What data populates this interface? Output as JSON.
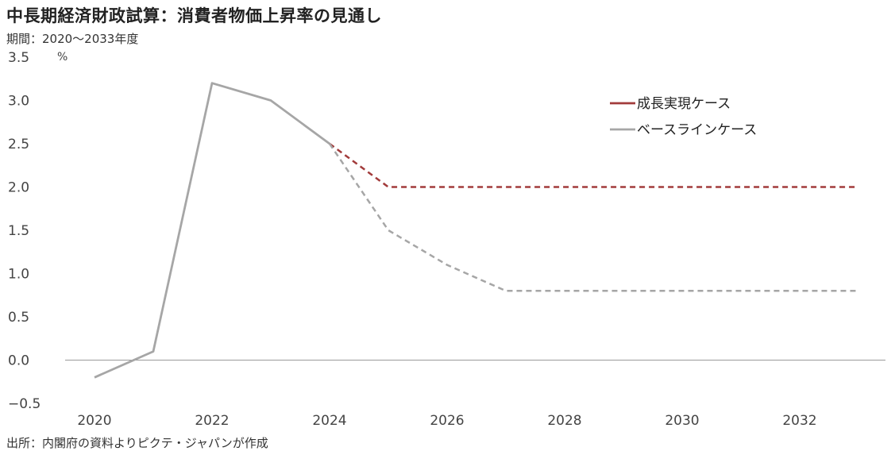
{
  "title": "中長期経済財政試算：消費者物価上昇率の見通し",
  "period": "期間：2020～2033年度",
  "source": "出所：内閣府の資料よりピクテ・ジャパンが作成",
  "chart_data": {
    "type": "line",
    "unit_label": "%",
    "x": [
      2020,
      2021,
      2022,
      2023,
      2024,
      2025,
      2026,
      2027,
      2028,
      2029,
      2030,
      2031,
      2032,
      2033
    ],
    "xticks": [
      "2020",
      "2022",
      "2024",
      "2026",
      "2028",
      "2030",
      "2032"
    ],
    "ylim": [
      -0.5,
      3.5
    ],
    "yticks": [
      "3.5",
      "3.0",
      "2.5",
      "2.0",
      "1.5",
      "1.0",
      "0.5",
      "0.0",
      "−0.5"
    ],
    "negative_tick_color": "#e0302a",
    "grid": false,
    "legend_position": "top-right",
    "series": [
      {
        "name": "成長実現ケース",
        "color": "#a23b3b",
        "values": [
          -0.2,
          0.1,
          3.2,
          3.0,
          2.5,
          2.0,
          2.0,
          2.0,
          2.0,
          2.0,
          2.0,
          2.0,
          2.0,
          2.0
        ]
      },
      {
        "name": "ベースラインケース",
        "color": "#a6a6a6",
        "values": [
          -0.2,
          0.1,
          3.2,
          3.0,
          2.5,
          1.5,
          1.1,
          0.8,
          0.8,
          0.8,
          0.8,
          0.8,
          0.8,
          0.8
        ]
      }
    ],
    "actual_until": 2024
  }
}
